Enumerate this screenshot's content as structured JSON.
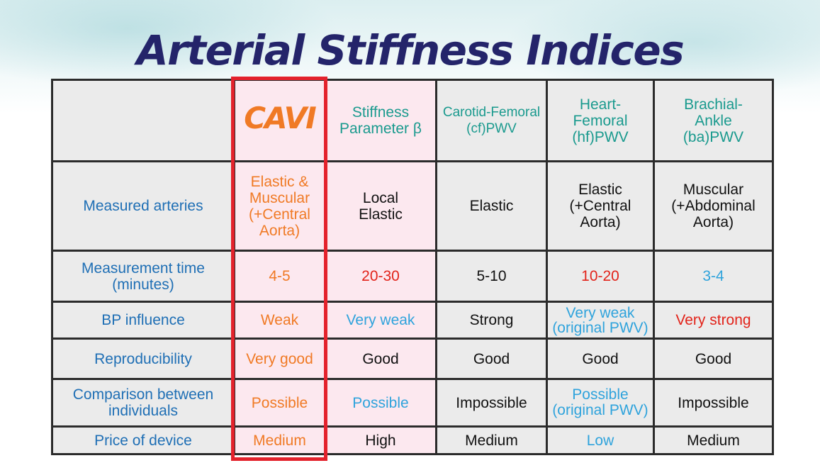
{
  "title": "Arterial Stiffness Indices",
  "headers": {
    "cavi": "CAVI",
    "beta": "Stiffness\nParameter β",
    "cfpwv": "Carotid-Femoral\n(cf)PWV",
    "hfpwv": "Heart-\nFemoral\n(hf)PWV",
    "bapwv": "Brachial-\nAnkle\n(ba)PWV"
  },
  "rows": [
    {
      "label": "Measured arteries",
      "cavi": "Elastic &\nMuscular\n(+Central\nAorta)",
      "beta": "Local\nElastic",
      "cfpwv": "Elastic",
      "hfpwv": "Elastic\n(+Central\nAorta)",
      "bapwv": "Muscular\n(+Abdominal\nAorta)"
    },
    {
      "label": "Measurement time\n(minutes)",
      "cavi": "4-5",
      "beta": "20-30",
      "cfpwv": "5-10",
      "hfpwv": "10-20",
      "bapwv": "3-4"
    },
    {
      "label": "BP influence",
      "cavi": "Weak",
      "beta": "Very weak",
      "cfpwv": "Strong",
      "hfpwv": "Very weak\n(original PWV)",
      "bapwv": "Very strong"
    },
    {
      "label": "Reproducibility",
      "cavi": "Very good",
      "beta": "Good",
      "cfpwv": "Good",
      "hfpwv": "Good",
      "bapwv": "Good"
    },
    {
      "label": "Comparison between\nindividuals",
      "cavi": "Possible",
      "beta": "Possible",
      "cfpwv": "Impossible",
      "hfpwv": "Possible\n(original PWV)",
      "bapwv": "Impossible"
    },
    {
      "label": "Price of device",
      "cavi": "Medium",
      "beta": "High",
      "cfpwv": "Medium",
      "hfpwv": "Low",
      "bapwv": "Medium"
    }
  ],
  "colors": {
    "title": "#24246a",
    "header_text": "#1a9a8e",
    "row_label": "#1f6fb5",
    "cavi_orange": "#f07a25",
    "red_value": "#e2231a",
    "blue_value": "#2fa3dc",
    "highlight_border": "#e3222c",
    "pink_cell": "#fce8ef",
    "gray_cell": "#ebebeb"
  }
}
